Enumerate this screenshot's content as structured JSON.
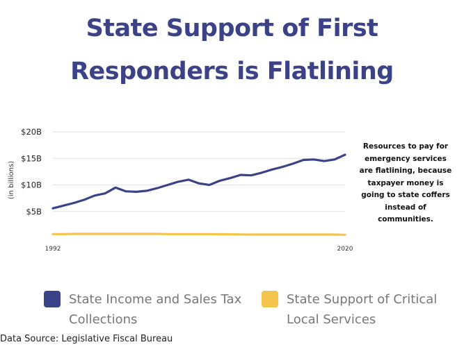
{
  "title": {
    "line1": "State Support of First",
    "line2": "Responders is Flatlining"
  },
  "annotation": "Resources to pay for emergency services are flatlining, because taxpayer money is going to state coffers instead of communities.",
  "source": "Data Source: Legislative Fiscal Bureau",
  "colors": {
    "title": "#3b4288",
    "series1": "#3b4288",
    "series2": "#f3c54b",
    "grid": "#e2e2e2"
  },
  "chart_data": {
    "type": "line",
    "title": "State Support of First Responders is Flatlining",
    "ylabel": "(in billions)",
    "xlabel": "",
    "xlim": [
      1992,
      2020
    ],
    "ylim": [
      0,
      20
    ],
    "grid": true,
    "legend": "bottom",
    "y_ticks": [
      {
        "value": 5,
        "label": "$5B"
      },
      {
        "value": 10,
        "label": "$10B"
      },
      {
        "value": 15,
        "label": "$15B"
      },
      {
        "value": 20,
        "label": "$20B"
      }
    ],
    "x_ticks": [
      {
        "value": 1992,
        "label": "1992"
      },
      {
        "value": 2020,
        "label": "2020"
      }
    ],
    "x": [
      1992,
      1993,
      1994,
      1995,
      1996,
      1997,
      1998,
      1999,
      2000,
      2001,
      2002,
      2003,
      2004,
      2005,
      2006,
      2007,
      2008,
      2009,
      2010,
      2011,
      2012,
      2013,
      2014,
      2015,
      2016,
      2017,
      2018,
      2019,
      2020
    ],
    "series": [
      {
        "name": "State Income and Sales Tax Collections",
        "color": "#3b4288",
        "values": [
          5.6,
          6.1,
          6.6,
          7.2,
          8.0,
          8.4,
          9.5,
          8.8,
          8.7,
          8.9,
          9.4,
          10.0,
          10.6,
          11.0,
          10.3,
          10.0,
          10.8,
          11.3,
          11.9,
          11.8,
          12.3,
          12.9,
          13.4,
          14.0,
          14.7,
          14.8,
          14.5,
          14.8,
          15.7
        ]
      },
      {
        "name": "State Support of Critical Local Services",
        "color": "#f3c54b",
        "values": [
          0.75,
          0.75,
          0.78,
          0.78,
          0.78,
          0.78,
          0.78,
          0.78,
          0.78,
          0.78,
          0.78,
          0.75,
          0.75,
          0.75,
          0.75,
          0.75,
          0.72,
          0.7,
          0.68,
          0.65,
          0.65,
          0.65,
          0.65,
          0.65,
          0.65,
          0.65,
          0.65,
          0.65,
          0.62
        ]
      }
    ]
  }
}
